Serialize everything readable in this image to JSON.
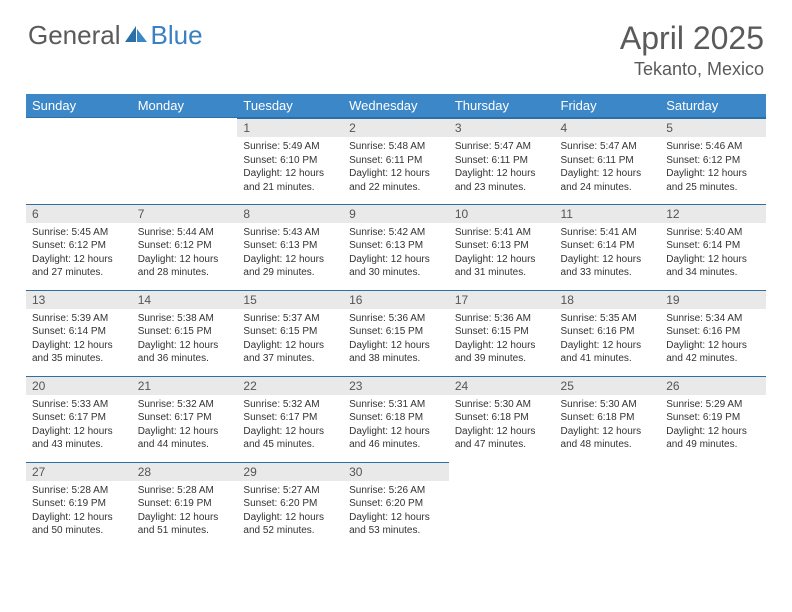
{
  "brand": {
    "part1": "General",
    "part2": "Blue"
  },
  "title": "April 2025",
  "location": "Tekanto, Mexico",
  "colors": {
    "header_bg": "#3b87c8",
    "header_border": "#2a6fa5",
    "daynum_bg": "#e9e9e9",
    "text": "#333333",
    "muted": "#5a5a5a"
  },
  "weekdays": [
    "Sunday",
    "Monday",
    "Tuesday",
    "Wednesday",
    "Thursday",
    "Friday",
    "Saturday"
  ],
  "weeks": [
    [
      null,
      null,
      {
        "n": "1",
        "sr": "5:49 AM",
        "ss": "6:10 PM",
        "dl": "12 hours and 21 minutes."
      },
      {
        "n": "2",
        "sr": "5:48 AM",
        "ss": "6:11 PM",
        "dl": "12 hours and 22 minutes."
      },
      {
        "n": "3",
        "sr": "5:47 AM",
        "ss": "6:11 PM",
        "dl": "12 hours and 23 minutes."
      },
      {
        "n": "4",
        "sr": "5:47 AM",
        "ss": "6:11 PM",
        "dl": "12 hours and 24 minutes."
      },
      {
        "n": "5",
        "sr": "5:46 AM",
        "ss": "6:12 PM",
        "dl": "12 hours and 25 minutes."
      }
    ],
    [
      {
        "n": "6",
        "sr": "5:45 AM",
        "ss": "6:12 PM",
        "dl": "12 hours and 27 minutes."
      },
      {
        "n": "7",
        "sr": "5:44 AM",
        "ss": "6:12 PM",
        "dl": "12 hours and 28 minutes."
      },
      {
        "n": "8",
        "sr": "5:43 AM",
        "ss": "6:13 PM",
        "dl": "12 hours and 29 minutes."
      },
      {
        "n": "9",
        "sr": "5:42 AM",
        "ss": "6:13 PM",
        "dl": "12 hours and 30 minutes."
      },
      {
        "n": "10",
        "sr": "5:41 AM",
        "ss": "6:13 PM",
        "dl": "12 hours and 31 minutes."
      },
      {
        "n": "11",
        "sr": "5:41 AM",
        "ss": "6:14 PM",
        "dl": "12 hours and 33 minutes."
      },
      {
        "n": "12",
        "sr": "5:40 AM",
        "ss": "6:14 PM",
        "dl": "12 hours and 34 minutes."
      }
    ],
    [
      {
        "n": "13",
        "sr": "5:39 AM",
        "ss": "6:14 PM",
        "dl": "12 hours and 35 minutes."
      },
      {
        "n": "14",
        "sr": "5:38 AM",
        "ss": "6:15 PM",
        "dl": "12 hours and 36 minutes."
      },
      {
        "n": "15",
        "sr": "5:37 AM",
        "ss": "6:15 PM",
        "dl": "12 hours and 37 minutes."
      },
      {
        "n": "16",
        "sr": "5:36 AM",
        "ss": "6:15 PM",
        "dl": "12 hours and 38 minutes."
      },
      {
        "n": "17",
        "sr": "5:36 AM",
        "ss": "6:15 PM",
        "dl": "12 hours and 39 minutes."
      },
      {
        "n": "18",
        "sr": "5:35 AM",
        "ss": "6:16 PM",
        "dl": "12 hours and 41 minutes."
      },
      {
        "n": "19",
        "sr": "5:34 AM",
        "ss": "6:16 PM",
        "dl": "12 hours and 42 minutes."
      }
    ],
    [
      {
        "n": "20",
        "sr": "5:33 AM",
        "ss": "6:17 PM",
        "dl": "12 hours and 43 minutes."
      },
      {
        "n": "21",
        "sr": "5:32 AM",
        "ss": "6:17 PM",
        "dl": "12 hours and 44 minutes."
      },
      {
        "n": "22",
        "sr": "5:32 AM",
        "ss": "6:17 PM",
        "dl": "12 hours and 45 minutes."
      },
      {
        "n": "23",
        "sr": "5:31 AM",
        "ss": "6:18 PM",
        "dl": "12 hours and 46 minutes."
      },
      {
        "n": "24",
        "sr": "5:30 AM",
        "ss": "6:18 PM",
        "dl": "12 hours and 47 minutes."
      },
      {
        "n": "25",
        "sr": "5:30 AM",
        "ss": "6:18 PM",
        "dl": "12 hours and 48 minutes."
      },
      {
        "n": "26",
        "sr": "5:29 AM",
        "ss": "6:19 PM",
        "dl": "12 hours and 49 minutes."
      }
    ],
    [
      {
        "n": "27",
        "sr": "5:28 AM",
        "ss": "6:19 PM",
        "dl": "12 hours and 50 minutes."
      },
      {
        "n": "28",
        "sr": "5:28 AM",
        "ss": "6:19 PM",
        "dl": "12 hours and 51 minutes."
      },
      {
        "n": "29",
        "sr": "5:27 AM",
        "ss": "6:20 PM",
        "dl": "12 hours and 52 minutes."
      },
      {
        "n": "30",
        "sr": "5:26 AM",
        "ss": "6:20 PM",
        "dl": "12 hours and 53 minutes."
      },
      null,
      null,
      null
    ]
  ],
  "labels": {
    "sunrise": "Sunrise:",
    "sunset": "Sunset:",
    "daylight": "Daylight:"
  }
}
